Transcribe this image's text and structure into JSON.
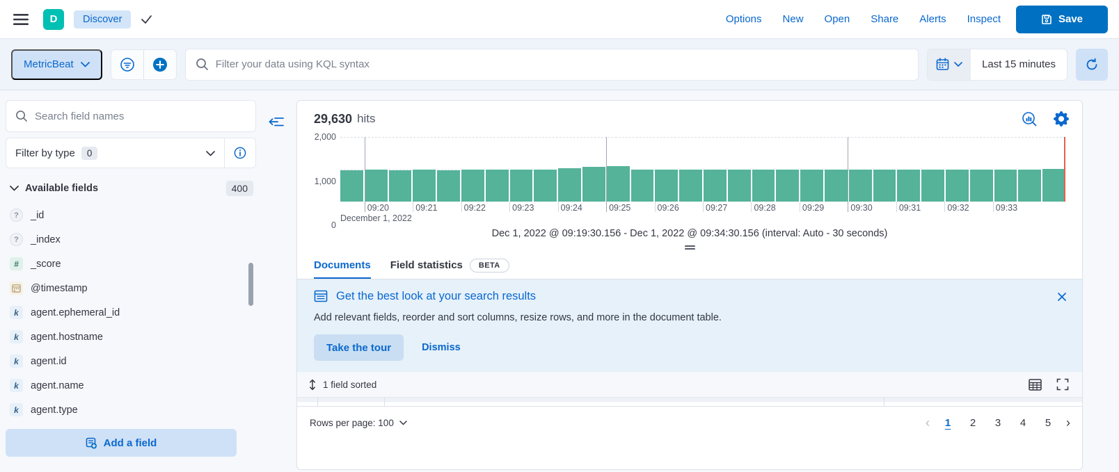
{
  "header": {
    "app_initial": "D",
    "breadcrumb": "Discover",
    "nav": [
      "Options",
      "New",
      "Open",
      "Share",
      "Alerts",
      "Inspect"
    ],
    "save_label": "Save"
  },
  "toolbar": {
    "data_view": "MetricBeat",
    "search_placeholder": "Filter your data using KQL syntax",
    "time_range": "Last 15 minutes"
  },
  "sidebar": {
    "search_placeholder": "Search field names",
    "filter_by_type_label": "Filter by type",
    "filter_count": "0",
    "available_fields_label": "Available fields",
    "available_fields_count": "400",
    "add_field_label": "Add a field",
    "fields": [
      {
        "name": "_id",
        "type": "unknown"
      },
      {
        "name": "_index",
        "type": "unknown"
      },
      {
        "name": "_score",
        "type": "number"
      },
      {
        "name": "@timestamp",
        "type": "date"
      },
      {
        "name": "agent.ephemeral_id",
        "type": "keyword"
      },
      {
        "name": "agent.hostname",
        "type": "keyword"
      },
      {
        "name": "agent.id",
        "type": "keyword"
      },
      {
        "name": "agent.name",
        "type": "keyword"
      },
      {
        "name": "agent.type",
        "type": "keyword"
      }
    ]
  },
  "main": {
    "hits_count": "29,630",
    "hits_label": "hits",
    "chart_caption": "Dec 1, 2022 @ 09:19:30.156 - Dec 1, 2022 @ 09:34:30.156 (interval: Auto - 30 seconds)",
    "tabs": [
      {
        "label": "Documents",
        "active": true
      },
      {
        "label": "Field statistics",
        "active": false
      }
    ],
    "beta_badge": "BETA",
    "callout": {
      "title": "Get the best look at your search results",
      "body": "Add relevant fields, reorder and sort columns, resize rows, and more in the document table.",
      "primary_button": "Take the tour",
      "secondary_button": "Dismiss"
    },
    "sorted_label": "1 field sorted",
    "footer": {
      "rows_per_page_label": "Rows per page: 100",
      "pages": [
        "1",
        "2",
        "3",
        "4",
        "5"
      ],
      "active_page": "1"
    }
  },
  "chart_data": {
    "type": "bar",
    "x_start": "09:19:30",
    "interval_seconds": 30,
    "values": [
      975,
      980,
      975,
      980,
      975,
      980,
      985,
      980,
      985,
      1040,
      1065,
      1100,
      1000,
      1000,
      995,
      1000,
      995,
      1000,
      995,
      1000,
      1000,
      995,
      1000,
      995,
      1000,
      1000,
      995,
      1000,
      1000,
      1005
    ],
    "x_tick_labels": [
      "09:20",
      "09:21",
      "09:22",
      "09:23",
      "09:24",
      "09:25",
      "09:26",
      "09:27",
      "09:28",
      "09:29",
      "09:30",
      "09:31",
      "09:32",
      "09:33"
    ],
    "x_axis_date_label": "December 1, 2022",
    "y_tick_labels": [
      "0",
      "1,000",
      "2,000"
    ],
    "ylim": [
      0,
      2000
    ],
    "grid": "dashed horizontal lines at 1,000 and 2,000",
    "major_section_lines": [
      "09:20",
      "09:25",
      "09:30"
    ],
    "bar_color": "#54b399",
    "current_time_marker_color": "#e5604b",
    "legend": "none"
  },
  "colors": {
    "accent_teal": "#00bfb3",
    "primary_blue": "#0071c2",
    "link_blue": "#0a68ce",
    "callout_bg": "#e6f1fa",
    "bar_teal": "#54b399",
    "marker_red": "#e5604b"
  }
}
